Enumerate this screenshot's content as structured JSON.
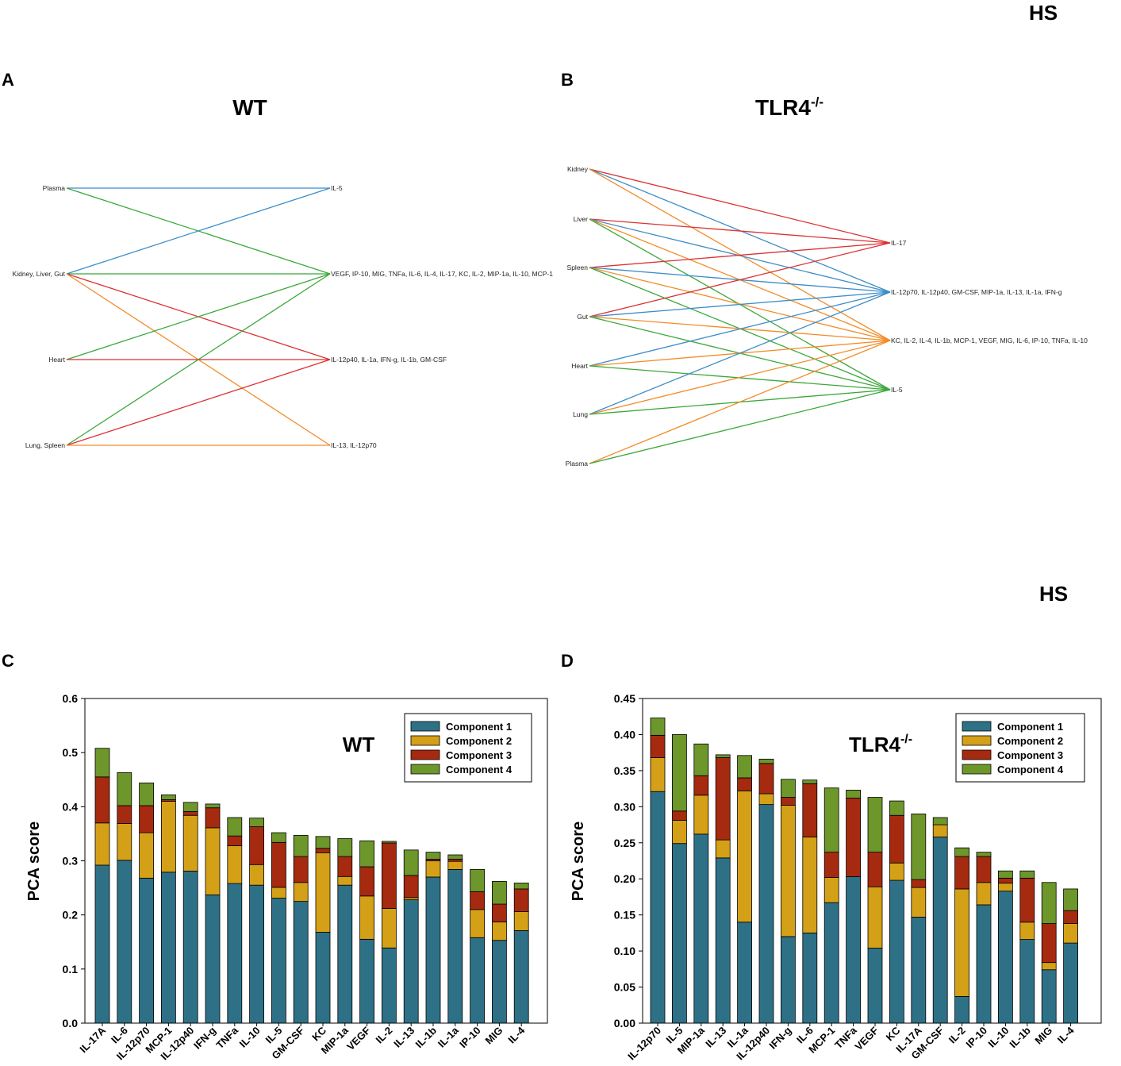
{
  "hs_labels": [
    "HS",
    "HS"
  ],
  "panel_letters": [
    "A",
    "B",
    "C",
    "D"
  ],
  "colors": {
    "component_1": "#2e7187",
    "component_2": "#d4a017",
    "component_3": "#a52a0f",
    "component_4": "#6d962b",
    "net_blue": "#3c8dc9",
    "net_green": "#3aa83a",
    "net_red": "#dc3232",
    "net_orange": "#f28c28"
  },
  "networks": [
    {
      "title": "WT",
      "left_nodes": [
        "Plasma",
        "Kidney, Liver, Gut",
        "Heart",
        "Lung, Spleen"
      ],
      "right_nodes": [
        "IL-5",
        "VEGF, IP-10, MIG, TNFa, IL-6, IL-4, IL-17, KC, IL-2, MIP-1a, IL-10, MCP-1",
        "IL-12p40, IL-1a, IFN-g, IL-1b, GM-CSF",
        "IL-13, IL-12p70"
      ],
      "edges": [
        {
          "from": 0,
          "to": 0,
          "color": "blue"
        },
        {
          "from": 0,
          "to": 1,
          "color": "green"
        },
        {
          "from": 1,
          "to": 0,
          "color": "blue"
        },
        {
          "from": 1,
          "to": 1,
          "color": "green"
        },
        {
          "from": 1,
          "to": 2,
          "color": "red"
        },
        {
          "from": 1,
          "to": 3,
          "color": "orange"
        },
        {
          "from": 2,
          "to": 1,
          "color": "green"
        },
        {
          "from": 2,
          "to": 2,
          "color": "red"
        },
        {
          "from": 3,
          "to": 1,
          "color": "green"
        },
        {
          "from": 3,
          "to": 2,
          "color": "red"
        },
        {
          "from": 3,
          "to": 3,
          "color": "orange"
        }
      ]
    },
    {
      "title": "TLR4",
      "title_sup": "-/-",
      "left_nodes": [
        "Kidney",
        "Liver",
        "Spleen",
        "Gut",
        "Heart",
        "Lung",
        "Plasma"
      ],
      "right_nodes": [
        "IL-17",
        "IL-12p70, IL-12p40, GM-CSF, MIP-1a, IL-13, IL-1a, IFN-g",
        "KC, IL-2, IL-4, IL-1b, MCP-1, VEGF, MIG, IL-6, IP-10, TNFa, IL-10",
        "IL-5"
      ],
      "edges": [
        {
          "from": 0,
          "to": 0,
          "color": "red"
        },
        {
          "from": 0,
          "to": 1,
          "color": "blue"
        },
        {
          "from": 0,
          "to": 2,
          "color": "orange"
        },
        {
          "from": 1,
          "to": 0,
          "color": "red"
        },
        {
          "from": 1,
          "to": 1,
          "color": "blue"
        },
        {
          "from": 1,
          "to": 2,
          "color": "orange"
        },
        {
          "from": 1,
          "to": 3,
          "color": "green"
        },
        {
          "from": 2,
          "to": 0,
          "color": "red"
        },
        {
          "from": 2,
          "to": 1,
          "color": "blue"
        },
        {
          "from": 2,
          "to": 2,
          "color": "orange"
        },
        {
          "from": 2,
          "to": 3,
          "color": "green"
        },
        {
          "from": 3,
          "to": 0,
          "color": "red"
        },
        {
          "from": 3,
          "to": 1,
          "color": "blue"
        },
        {
          "from": 3,
          "to": 2,
          "color": "orange"
        },
        {
          "from": 3,
          "to": 3,
          "color": "green"
        },
        {
          "from": 4,
          "to": 1,
          "color": "blue"
        },
        {
          "from": 4,
          "to": 2,
          "color": "orange"
        },
        {
          "from": 4,
          "to": 3,
          "color": "green"
        },
        {
          "from": 5,
          "to": 1,
          "color": "blue"
        },
        {
          "from": 5,
          "to": 2,
          "color": "orange"
        },
        {
          "from": 5,
          "to": 3,
          "color": "green"
        },
        {
          "from": 6,
          "to": 2,
          "color": "orange"
        },
        {
          "from": 6,
          "to": 3,
          "color": "green"
        }
      ]
    }
  ],
  "chart_data": [
    {
      "type": "bar",
      "stacked": true,
      "title": "WT",
      "xlabel": "",
      "ylabel": "PCA score",
      "ylim": [
        0,
        0.6
      ],
      "yticks": [
        "0.0",
        "0.1",
        "0.2",
        "0.3",
        "0.4",
        "0.5",
        "0.6"
      ],
      "legend_position": "top-right",
      "categories": [
        "IL-17A",
        "IL-6",
        "IL-12p70",
        "MCP-1",
        "IL-12p40",
        "IFN-g",
        "TNFa",
        "IL-10",
        "IL-5",
        "GM-CSF",
        "KC",
        "MIP-1a",
        "VEGF",
        "IL-2",
        "IL-13",
        "IL-1b",
        "IL-1a",
        "IP-10",
        "MIG",
        "IL-4"
      ],
      "series": [
        {
          "name": "Component 1",
          "values": [
            0.292,
            0.301,
            0.268,
            0.279,
            0.281,
            0.237,
            0.258,
            0.255,
            0.231,
            0.225,
            0.168,
            0.255,
            0.155,
            0.139,
            0.228,
            0.27,
            0.284,
            0.158,
            0.153,
            0.171
          ]
        },
        {
          "name": "Component 2",
          "values": [
            0.078,
            0.068,
            0.084,
            0.131,
            0.103,
            0.124,
            0.07,
            0.038,
            0.02,
            0.035,
            0.147,
            0.016,
            0.08,
            0.073,
            0.004,
            0.03,
            0.015,
            0.052,
            0.034,
            0.035
          ]
        },
        {
          "name": "Component 3",
          "values": [
            0.085,
            0.033,
            0.05,
            0.003,
            0.007,
            0.037,
            0.018,
            0.07,
            0.083,
            0.048,
            0.008,
            0.037,
            0.054,
            0.121,
            0.041,
            0.003,
            0.004,
            0.033,
            0.033,
            0.042
          ]
        },
        {
          "name": "Component 4",
          "values": [
            0.053,
            0.061,
            0.042,
            0.009,
            0.017,
            0.007,
            0.034,
            0.016,
            0.018,
            0.039,
            0.022,
            0.033,
            0.048,
            0.003,
            0.047,
            0.013,
            0.008,
            0.041,
            0.042,
            0.011
          ]
        }
      ]
    },
    {
      "type": "bar",
      "stacked": true,
      "title": "TLR4",
      "title_sup": "-/-",
      "xlabel": "",
      "ylabel": "PCA score",
      "ylim": [
        0,
        0.45
      ],
      "yticks": [
        "0.00",
        "0.05",
        "0.10",
        "0.15",
        "0.20",
        "0.25",
        "0.30",
        "0.35",
        "0.40",
        "0.45"
      ],
      "legend_position": "top-right",
      "categories": [
        "IL-12p70",
        "IL-5",
        "MIP-1a",
        "IL-13",
        "IL-1a",
        "IL-12p40",
        "IFN-g",
        "IL-6",
        "MCP-1",
        "TNFa",
        "VEGF",
        "KC",
        "IL-17A",
        "GM-CSF",
        "IL-2",
        "IP-10",
        "IL-10",
        "IL-1b",
        "MIG",
        "IL-4"
      ],
      "series": [
        {
          "name": "Component 1",
          "values": [
            0.321,
            0.249,
            0.262,
            0.229,
            0.14,
            0.303,
            0.12,
            0.125,
            0.167,
            0.203,
            0.104,
            0.198,
            0.147,
            0.258,
            0.037,
            0.164,
            0.183,
            0.116,
            0.074,
            0.111
          ]
        },
        {
          "name": "Component 2",
          "values": [
            0.047,
            0.032,
            0.054,
            0.025,
            0.182,
            0.015,
            0.182,
            0.133,
            0.035,
            0.0,
            0.085,
            0.024,
            0.041,
            0.017,
            0.149,
            0.031,
            0.011,
            0.024,
            0.01,
            0.027
          ]
        },
        {
          "name": "Component 3",
          "values": [
            0.031,
            0.013,
            0.027,
            0.114,
            0.018,
            0.042,
            0.011,
            0.074,
            0.035,
            0.109,
            0.048,
            0.066,
            0.011,
            0.0,
            0.045,
            0.036,
            0.007,
            0.061,
            0.054,
            0.018
          ]
        },
        {
          "name": "Component 4",
          "values": [
            0.024,
            0.106,
            0.044,
            0.004,
            0.031,
            0.006,
            0.025,
            0.005,
            0.089,
            0.011,
            0.076,
            0.02,
            0.091,
            0.01,
            0.012,
            0.006,
            0.01,
            0.01,
            0.057,
            0.03
          ]
        }
      ]
    }
  ]
}
